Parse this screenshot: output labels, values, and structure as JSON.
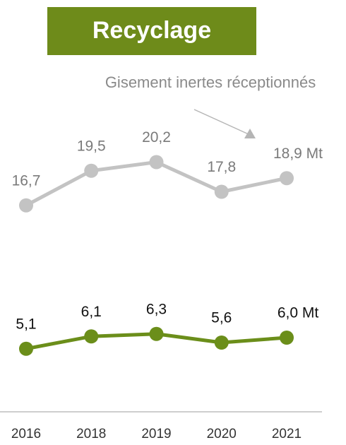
{
  "chart_data": {
    "type": "line",
    "title": "Recyclage",
    "annotation": "Gisement inertes réceptionnés",
    "categories": [
      "2016",
      "2018",
      "2019",
      "2020",
      "2021"
    ],
    "series": [
      {
        "color": "#c3c3c3",
        "label_color": "#7a7a7a",
        "values": [
          16.7,
          19.5,
          20.2,
          17.8,
          18.9
        ],
        "value_labels": [
          "16,7",
          "19,5",
          "20,2",
          "17,8",
          "18,9 Mt"
        ]
      },
      {
        "color": "#6b8e1a",
        "label_color": "#111111",
        "values": [
          5.1,
          6.1,
          6.3,
          5.6,
          6.0
        ],
        "value_labels": [
          "5,1",
          "6,1",
          "6,3",
          "5,6",
          "6,0 Mt"
        ]
      }
    ],
    "ylim": [
      0,
      30
    ],
    "title_color": "#6e8b1a"
  }
}
